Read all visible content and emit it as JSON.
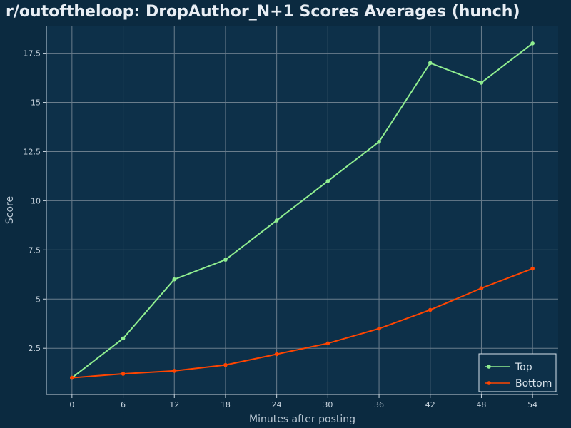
{
  "page": {
    "title": "r/outoftheloop: DropAuthor_N+1 Scores Averages (hunch)"
  },
  "chart_data": {
    "type": "line",
    "title": "r/outoftheloop: DropAuthor_N+1 Scores Averages (hunch)",
    "xlabel": "Minutes after posting",
    "ylabel": "Score",
    "x": [
      0,
      6,
      12,
      18,
      24,
      30,
      36,
      42,
      48,
      54
    ],
    "xticks": [
      "0",
      "6",
      "12",
      "18",
      "24",
      "30",
      "36",
      "42",
      "48",
      "54"
    ],
    "yticks": [
      2.5,
      5,
      7.5,
      10,
      12.5,
      15,
      17.5
    ],
    "ytick_labels": [
      "2.5",
      "5",
      "7.5",
      "10",
      "12.5",
      "15",
      "17.5"
    ],
    "xlim": [
      -3,
      57
    ],
    "ylim": [
      0.15,
      18.9
    ],
    "grid": true,
    "legend_position": "bottom-right",
    "series": [
      {
        "name": "Top",
        "color": "#90ee90",
        "values": [
          1,
          3,
          6,
          7,
          9,
          11,
          13,
          17,
          16,
          18
        ]
      },
      {
        "name": "Bottom",
        "color": "#ff4500",
        "values": [
          1,
          1.2,
          1.35,
          1.65,
          2.2,
          2.75,
          3.5,
          4.45,
          5.55,
          6.55
        ]
      }
    ],
    "colors": {
      "background": "#0b2a40",
      "plot_background": "#0d3049",
      "grid": "#6a7d8c",
      "axis": "#c8d4de"
    }
  }
}
